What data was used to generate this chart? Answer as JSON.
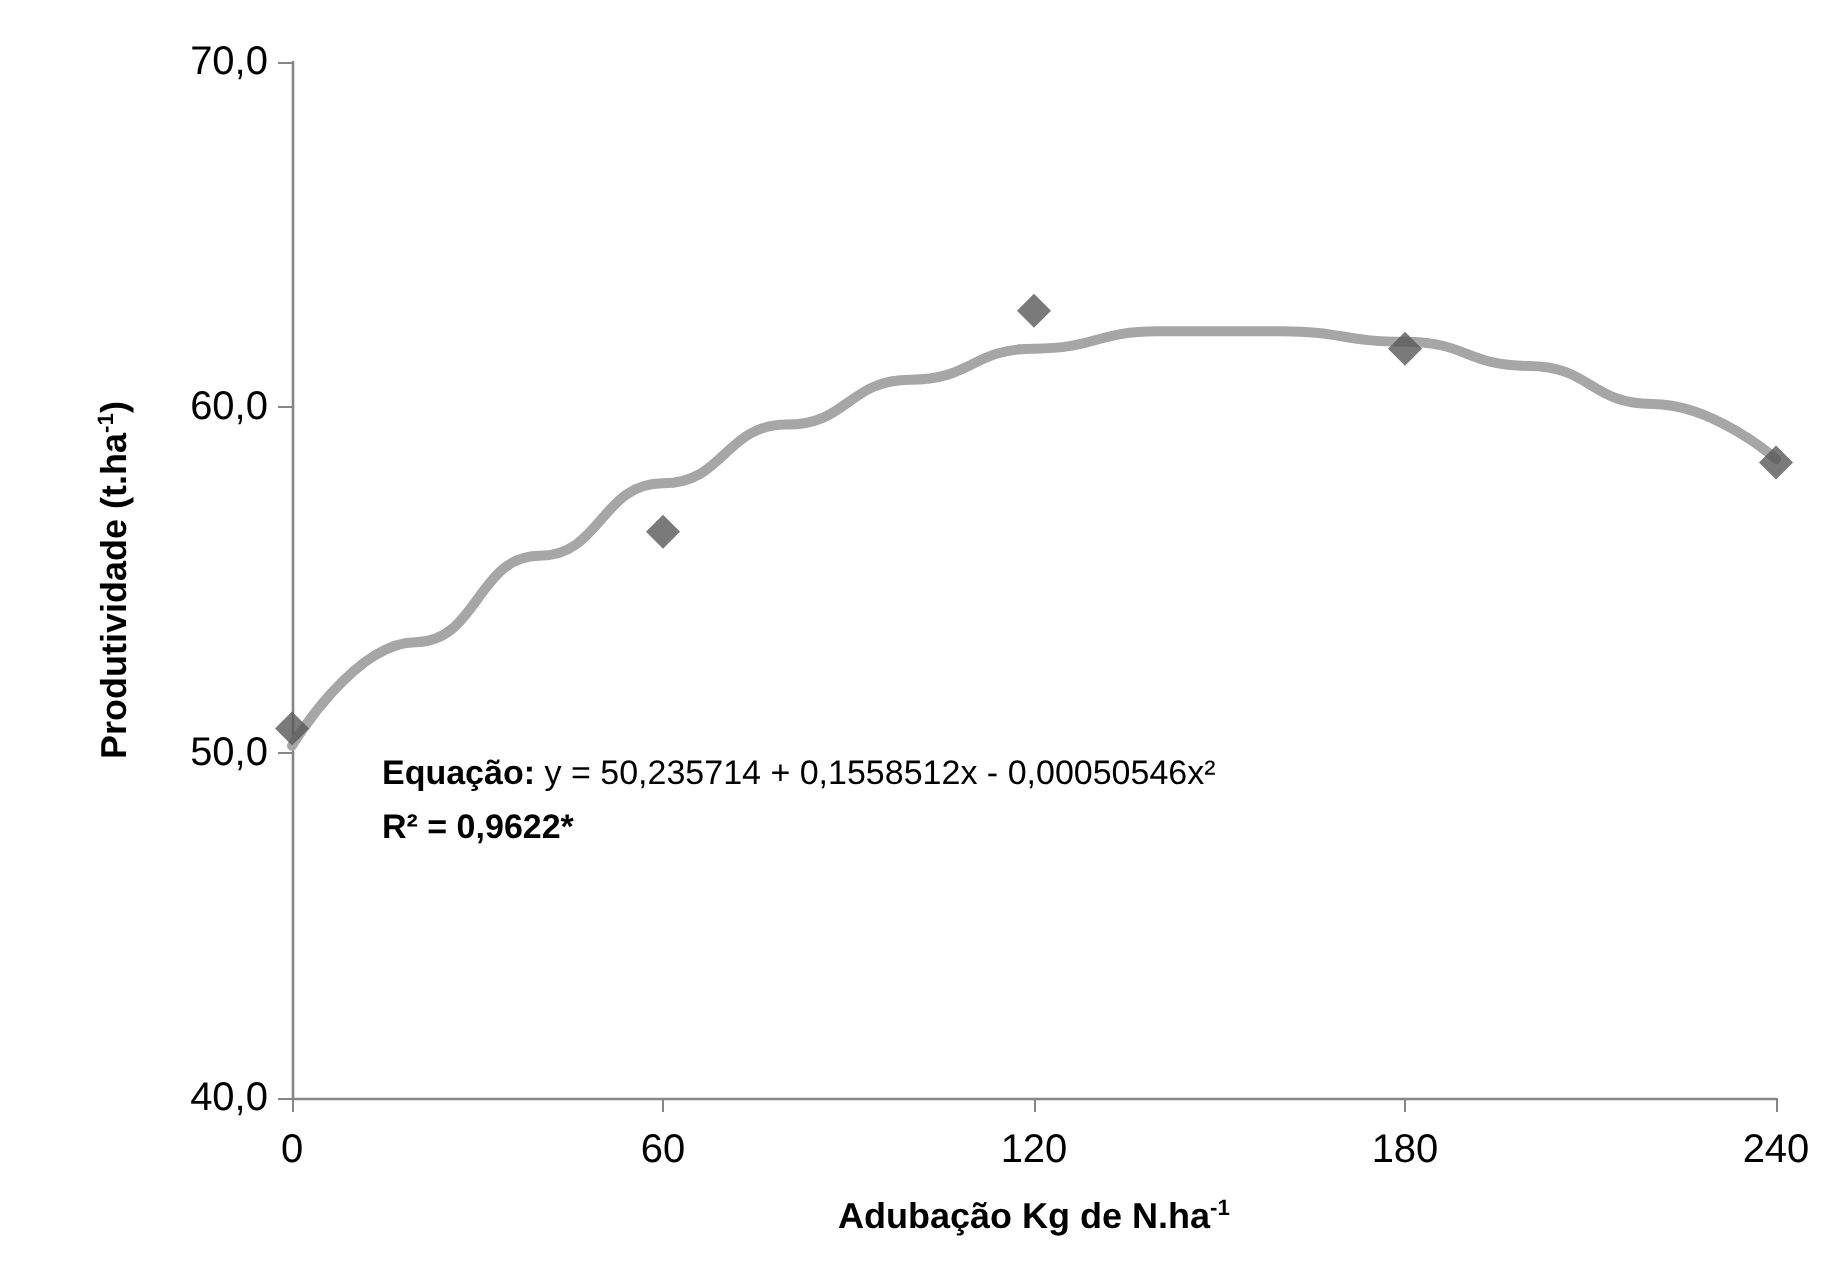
{
  "chart_data": {
    "type": "scatter",
    "xlabel": "Adubação Kg de N.ha$^{-1}$",
    "ylabel": "Produtividade (t.ha$^{-1}$)",
    "series": [
      {
        "color": "#595959",
        "marker": "diamond",
        "x": [
          0,
          60,
          120,
          180,
          240
        ],
        "values": [
          50.7,
          56.4,
          62.8,
          61.7,
          58.4
        ]
      },
      {
        "type": "line",
        "color": "#a6a6a6",
        "marker": "none",
        "line_style": "solid",
        "x": [
          0,
          20,
          40,
          60,
          80,
          100,
          120,
          140,
          160,
          180,
          200,
          220,
          240
        ],
        "values": [
          50.2,
          53.2,
          55.7,
          57.8,
          59.5,
          60.8,
          61.7,
          62.2,
          62.2,
          61.9,
          61.2,
          60.1,
          58.5
        ]
      }
    ],
    "xlim": [
      0,
      240
    ],
    "xticks": [
      0,
      60,
      120,
      180,
      240
    ],
    "ylim": [
      40,
      70
    ],
    "yticks": [
      {
        "value": 40,
        "label": "40,0"
      },
      {
        "value": 50,
        "label": "50,0"
      },
      {
        "value": 60,
        "label": "60,0"
      },
      {
        "value": 70,
        "label": "70,0"
      }
    ],
    "grid": false,
    "annotations": [
      "Equação: y = 50,235714 + 0,1558512x - 0,00050546x²",
      "R² = 0,9622*"
    ]
  }
}
